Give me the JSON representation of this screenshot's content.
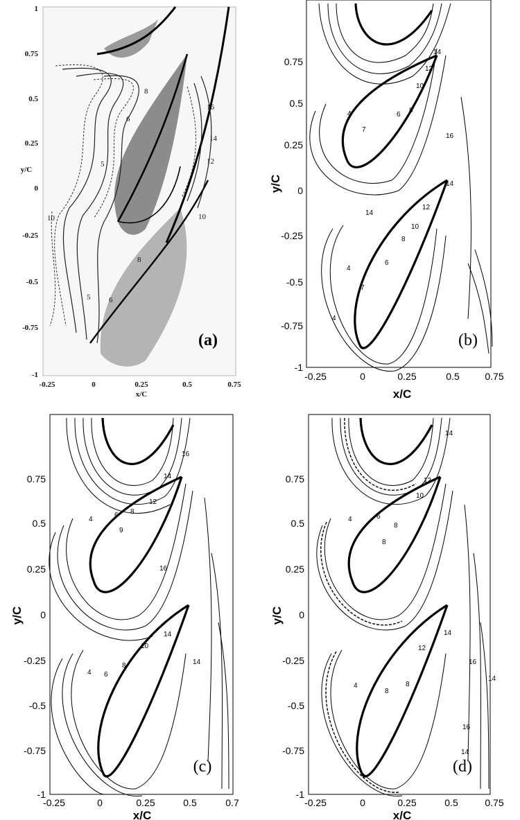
{
  "panels": [
    {
      "id": "a",
      "tag": "(a)",
      "xlabel": "x/C",
      "ylabel": "y/C",
      "xticks": [
        "-0.25",
        "0",
        "0.25",
        "0.5",
        "0.75"
      ],
      "yticks": [
        "1",
        "0.75",
        "0.5",
        "0.25",
        "0",
        "-0.25",
        "-0.5",
        "-0.75",
        "-1"
      ],
      "contour_labels": [
        "16",
        "14",
        "12",
        "10",
        "10",
        "8",
        "8",
        "6",
        "6",
        "5",
        "5"
      ]
    },
    {
      "id": "b",
      "tag": "(b)",
      "xlabel": "x/C",
      "ylabel": "y/C",
      "xticks": [
        "-0.25",
        "0",
        "0.25",
        "0.5",
        "0.75"
      ],
      "yticks": [
        "0.75",
        "0.5",
        "0.25",
        "0",
        "-0.25",
        "-0.5",
        "-0.75",
        "-1"
      ],
      "contour_labels": [
        "14",
        "12",
        "10",
        "8",
        "6",
        "4",
        "7",
        "16",
        "14",
        "12",
        "14",
        "10",
        "8",
        "6",
        "4",
        "7",
        "4"
      ]
    },
    {
      "id": "c",
      "tag": "(c)",
      "xlabel": "x/C",
      "ylabel": "y/C",
      "xticks": [
        "-0.25",
        "0",
        "0.25",
        "0.5",
        "0.7"
      ],
      "yticks": [
        "0.75",
        "0.5",
        "0.25",
        "0",
        "-0.25",
        "-0.5",
        "-0.75",
        "-1"
      ],
      "contour_labels": [
        "16",
        "14",
        "12",
        "4",
        "6",
        "8",
        "9",
        "16",
        "14",
        "14",
        "10",
        "8",
        "6",
        "4"
      ]
    },
    {
      "id": "d",
      "tag": "(d)",
      "xlabel": "x/C",
      "ylabel": "y/C",
      "xticks": [
        "-0.25",
        "0",
        "0.25",
        "0.5",
        "0.75"
      ],
      "yticks": [
        "0.75",
        "0.5",
        "0.25",
        "0",
        "-0.25",
        "-0.5",
        "-0.75",
        "-1"
      ],
      "contour_labels": [
        "14",
        "12",
        "10",
        "4",
        "6",
        "8",
        "8",
        "14",
        "12",
        "16",
        "14",
        "8",
        "4",
        "8",
        "16",
        "14"
      ]
    }
  ]
}
